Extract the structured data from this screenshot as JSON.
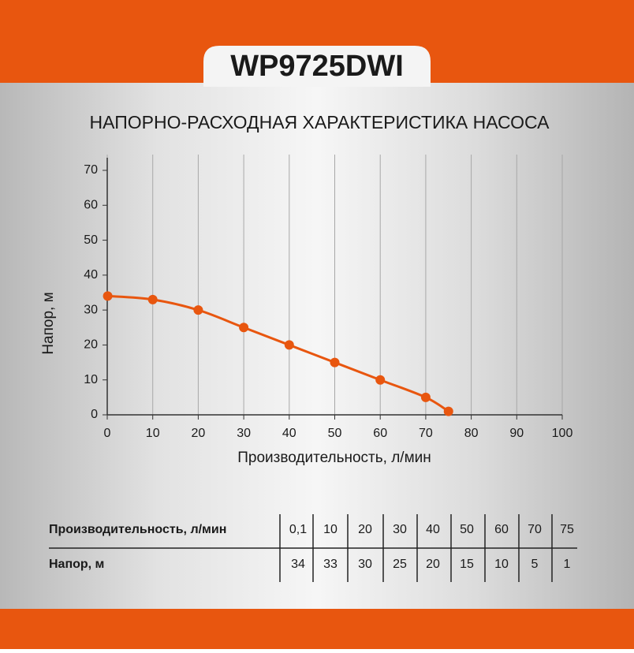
{
  "header": {
    "model": "WP9725DWI"
  },
  "chart_data": {
    "type": "line",
    "title": "НАПОРНО-РАСХОДНАЯ ХАРАКТЕРИСТИКА НАСОСА",
    "x_label": "Производительность, л/мин",
    "y_label": "Напор, м",
    "x": [
      0.1,
      10,
      20,
      30,
      40,
      50,
      60,
      70,
      75
    ],
    "series": [
      {
        "name": "Напор",
        "color": "#e8560f",
        "values": [
          34,
          33,
          30,
          25,
          20,
          15,
          10,
          5,
          1
        ]
      }
    ],
    "xlim": [
      0,
      100
    ],
    "xticks": [
      0,
      10,
      20,
      30,
      40,
      50,
      60,
      70,
      80,
      90,
      100
    ],
    "ylim": [
      0,
      70
    ],
    "yticks": [
      0,
      10,
      20,
      30,
      40,
      50,
      60,
      70
    ],
    "grid": "x"
  },
  "table": {
    "rows": [
      [
        "Производительность, л/мин",
        "0,1",
        "10",
        "20",
        "30",
        "40",
        "50",
        "60",
        "70",
        "75"
      ],
      [
        "Напор, м",
        "34",
        "33",
        "30",
        "25",
        "20",
        "15",
        "10",
        "5",
        "1"
      ]
    ]
  }
}
